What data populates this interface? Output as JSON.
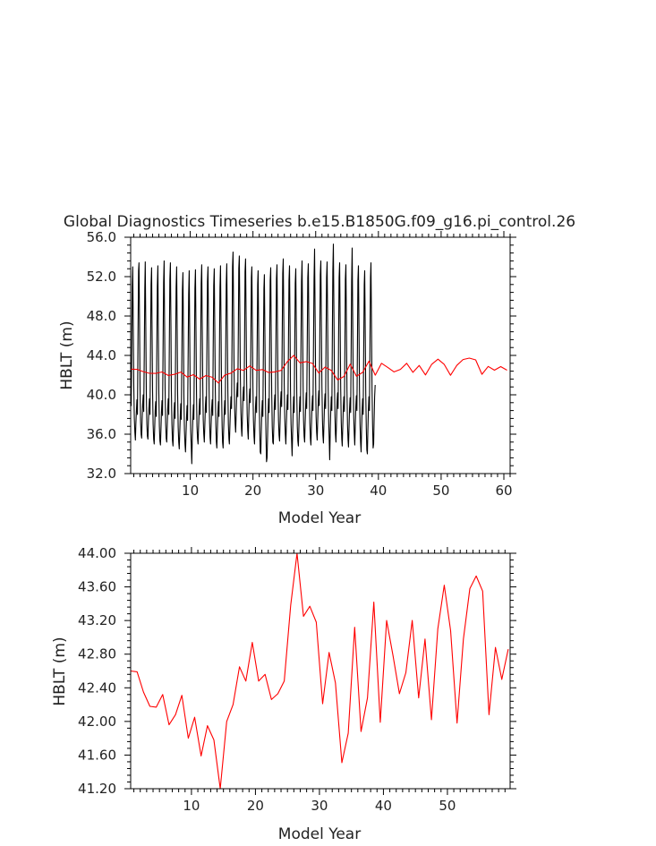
{
  "title": "Global Diagnostics Timeseries b.e15.B1850G.f09_g16.pi_control.26",
  "colors": {
    "monthly": "#000000",
    "annual": "#ff0000",
    "axes": "#000000"
  },
  "chart_data": [
    {
      "type": "line",
      "title": "Global Diagnostics Timeseries b.e15.B1850G.f09_g16.pi_control.26",
      "xlabel": "Model Year",
      "ylabel": "HBLT (m)",
      "xlim": [
        0.5,
        61
      ],
      "ylim": [
        32.0,
        56.0
      ],
      "xticks": [
        10,
        20,
        30,
        40,
        50,
        60
      ],
      "yticks": [
        "32.0",
        "36.0",
        "40.0",
        "44.0",
        "48.0",
        "52.0",
        "56.0"
      ],
      "grid": false,
      "series": [
        {
          "color": "#000000",
          "x_start": 0.5,
          "x_step": 0.0833,
          "values": [
            40.2,
            38.9,
            44.5,
            51.0,
            53.0,
            47.0,
            40.8,
            37.6,
            36.2,
            35.4,
            37.0,
            38.3,
            39.5,
            38.0,
            46.0,
            52.6,
            53.4,
            47.6,
            40.6,
            37.2,
            36.0,
            35.6,
            37.4,
            39.0,
            40.0,
            38.3,
            44.0,
            50.8,
            53.5,
            47.0,
            40.2,
            37.0,
            35.8,
            35.5,
            37.2,
            38.6,
            39.6,
            38.0,
            44.8,
            51.2,
            52.9,
            46.8,
            40.3,
            37.0,
            35.5,
            35.0,
            36.8,
            38.4,
            39.3,
            37.8,
            44.6,
            51.0,
            53.1,
            46.6,
            40.1,
            36.8,
            35.3,
            34.9,
            36.6,
            38.2,
            39.4,
            37.9,
            44.7,
            51.4,
            53.6,
            47.2,
            40.5,
            37.1,
            35.6,
            35.2,
            36.9,
            38.5,
            39.6,
            38.0,
            44.9,
            51.7,
            53.4,
            47.0,
            40.4,
            37.0,
            35.4,
            34.8,
            36.7,
            38.3,
            39.2,
            37.6,
            44.2,
            50.9,
            53.0,
            46.5,
            40.0,
            36.7,
            35.2,
            34.5,
            36.3,
            38.0,
            39.1,
            37.5,
            44.0,
            50.6,
            52.4,
            46.2,
            39.7,
            36.4,
            35.0,
            34.2,
            36.1,
            37.8,
            38.9,
            37.4,
            43.8,
            50.2,
            52.6,
            46.0,
            39.6,
            36.3,
            34.8,
            33.0,
            35.8,
            37.6,
            39.0,
            37.5,
            44.0,
            50.8,
            52.7,
            46.4,
            40.0,
            36.8,
            35.6,
            35.0,
            36.8,
            38.4,
            39.6,
            38.0,
            44.8,
            51.3,
            53.2,
            47.0,
            40.8,
            37.5,
            36.0,
            35.2,
            37.0,
            38.8,
            39.8,
            38.2,
            45.0,
            51.5,
            53.0,
            46.8,
            40.6,
            37.2,
            35.7,
            35.0,
            36.9,
            38.6,
            39.5,
            37.9,
            44.6,
            51.1,
            52.8,
            46.6,
            40.3,
            36.9,
            35.3,
            34.6,
            36.5,
            38.2,
            39.3,
            37.8,
            44.4,
            50.9,
            53.1,
            46.7,
            40.2,
            36.8,
            35.2,
            34.6,
            36.5,
            38.1,
            39.4,
            38.0,
            44.7,
            51.2,
            53.3,
            46.9,
            40.4,
            37.0,
            35.5,
            35.0,
            36.8,
            38.5,
            39.8,
            38.6,
            46.0,
            53.0,
            54.5,
            48.6,
            42.0,
            38.6,
            37.0,
            36.2,
            38.0,
            40.0,
            41.2,
            39.8,
            46.4,
            52.8,
            54.1,
            48.2,
            41.6,
            38.2,
            36.6,
            35.8,
            37.8,
            39.8,
            40.8,
            39.4,
            45.8,
            52.5,
            53.8,
            47.8,
            41.4,
            38.0,
            36.4,
            35.5,
            37.6,
            39.6,
            40.6,
            39.2,
            45.5,
            51.9,
            53.0,
            47.2,
            40.8,
            37.4,
            35.8,
            35.0,
            37.0,
            38.8,
            39.8,
            38.2,
            44.8,
            51.2,
            52.6,
            46.5,
            40.0,
            36.4,
            34.2,
            34.0,
            36.0,
            38.2,
            39.4,
            37.8,
            44.4,
            50.8,
            52.2,
            46.0,
            39.6,
            35.9,
            33.2,
            33.6,
            35.8,
            38.0,
            39.6,
            38.2,
            45.0,
            51.6,
            52.9,
            46.8,
            40.2,
            36.8,
            35.2,
            35.0,
            37.0,
            38.9,
            40.0,
            38.5,
            45.2,
            51.8,
            53.2,
            47.2,
            40.8,
            37.4,
            35.9,
            35.3,
            37.3,
            39.2,
            40.3,
            38.8,
            45.6,
            52.3,
            53.8,
            47.6,
            41.0,
            37.6,
            36.0,
            35.0,
            37.0,
            38.8,
            40.0,
            38.5,
            45.0,
            51.6,
            53.1,
            47.0,
            40.4,
            37.0,
            35.4,
            33.8,
            36.2,
            38.4,
            39.8,
            38.2,
            44.8,
            51.3,
            52.8,
            46.8,
            40.2,
            36.8,
            35.3,
            34.8,
            36.8,
            38.6,
            39.8,
            38.3,
            45.0,
            51.5,
            53.6,
            47.4,
            40.8,
            37.4,
            35.8,
            35.2,
            37.2,
            39.0,
            40.2,
            38.6,
            45.2,
            51.9,
            53.3,
            47.2,
            40.6,
            37.2,
            35.6,
            34.9,
            36.9,
            38.8,
            39.9,
            38.4,
            45.1,
            51.7,
            54.8,
            48.0,
            41.2,
            37.8,
            36.2,
            35.4,
            37.4,
            39.3,
            40.4,
            38.9,
            45.6,
            52.2,
            53.6,
            47.5,
            40.9,
            37.5,
            35.9,
            35.1,
            37.1,
            39.0,
            40.1,
            38.6,
            45.3,
            51.9,
            53.5,
            47.3,
            40.7,
            37.3,
            35.7,
            33.4,
            36.2,
            38.4,
            39.8,
            38.4,
            45.2,
            52.6,
            55.3,
            48.4,
            41.4,
            37.8,
            36.0,
            35.2,
            37.3,
            39.2,
            40.2,
            38.6,
            45.3,
            51.9,
            53.4,
            47.2,
            40.6,
            37.2,
            35.5,
            34.8,
            36.8,
            38.7,
            39.8,
            38.3,
            45.0,
            51.7,
            53.2,
            47.0,
            40.4,
            37.0,
            35.4,
            34.7,
            36.7,
            38.6,
            39.7,
            38.2,
            44.9,
            51.5,
            54.9,
            47.8,
            41.0,
            37.6,
            35.9,
            34.9,
            36.9,
            38.8,
            39.9,
            38.4,
            45.0,
            51.6,
            53.1,
            47.0,
            40.4,
            37.0,
            35.2,
            34.2,
            36.4,
            38.4,
            39.6,
            38.0,
            44.6,
            51.2,
            52.6,
            46.6,
            40.1,
            36.6,
            34.4,
            34.0,
            36.2,
            38.4,
            39.8,
            38.4,
            45.2,
            51.9,
            53.4,
            47.3,
            40.6,
            37.0,
            34.6,
            35.0,
            37.4,
            39.8,
            41.0
          ]
        },
        {
          "color": "#ff0000",
          "x": [
            0.5,
            1.5,
            2.5,
            3.5,
            4.5,
            5.5,
            6.5,
            7.5,
            8.5,
            9.5,
            10.5,
            11.5,
            12.5,
            13.5,
            14.5,
            15.5,
            16.5,
            17.5,
            18.5,
            19.5,
            20.5,
            21.5,
            22.5,
            23.5,
            24.5,
            25.5,
            26.5,
            27.5,
            28.5,
            29.5,
            30.5,
            31.5,
            32.5,
            33.5,
            34.5,
            35.5,
            36.5,
            37.5,
            38.5,
            39.5,
            40.5,
            41.5,
            42.5,
            43.5,
            44.5,
            45.5,
            46.5,
            47.5,
            48.5,
            49.5,
            50.5,
            51.5,
            52.5,
            53.5,
            54.5,
            55.5,
            56.5,
            57.5,
            58.5,
            59.5,
            60.5
          ],
          "values": [
            42.6,
            42.59,
            42.35,
            42.18,
            42.17,
            42.32,
            41.96,
            42.08,
            42.31,
            41.8,
            42.05,
            41.59,
            41.95,
            41.78,
            41.2,
            42.0,
            42.2,
            42.65,
            42.48,
            42.94,
            42.48,
            42.56,
            42.26,
            42.33,
            42.48,
            43.38,
            44.0,
            43.25,
            43.37,
            43.18,
            42.21,
            42.82,
            42.46,
            41.51,
            41.86,
            43.12,
            41.88,
            42.28,
            43.42,
            41.99,
            43.2,
            42.78,
            42.33,
            42.58,
            43.2,
            42.28,
            42.98,
            42.02,
            43.1,
            43.62,
            43.08,
            41.98,
            42.98,
            43.58,
            43.73,
            43.55,
            42.08,
            42.88,
            42.5,
            42.86,
            42.5
          ]
        }
      ]
    },
    {
      "type": "line",
      "xlabel": "Model Year",
      "ylabel": "HBLT (m)",
      "xlim": [
        0.5,
        59.8
      ],
      "ylim": [
        41.2,
        44.0
      ],
      "xticks": [
        10,
        20,
        30,
        40,
        50
      ],
      "yticks": [
        "41.20",
        "41.60",
        "42.00",
        "42.40",
        "42.80",
        "43.20",
        "43.60",
        "44.00"
      ],
      "grid": false,
      "series": [
        {
          "color": "#ff0000",
          "x": [
            0.5,
            1.5,
            2.5,
            3.5,
            4.5,
            5.5,
            6.5,
            7.5,
            8.5,
            9.5,
            10.5,
            11.5,
            12.5,
            13.5,
            14.5,
            15.5,
            16.5,
            17.5,
            18.5,
            19.5,
            20.5,
            21.5,
            22.5,
            23.5,
            24.5,
            25.5,
            26.5,
            27.5,
            28.5,
            29.5,
            30.5,
            31.5,
            32.5,
            33.5,
            34.5,
            35.5,
            36.5,
            37.5,
            38.5,
            39.5,
            40.5,
            41.5,
            42.5,
            43.5,
            44.5,
            45.5,
            46.5,
            47.5,
            48.5,
            49.5,
            50.5,
            51.5,
            52.5,
            53.5,
            54.5,
            55.5,
            56.5,
            57.5,
            58.5,
            59.5
          ],
          "values": [
            42.6,
            42.59,
            42.35,
            42.18,
            42.17,
            42.32,
            41.96,
            42.08,
            42.31,
            41.8,
            42.05,
            41.59,
            41.95,
            41.78,
            41.2,
            42.0,
            42.2,
            42.65,
            42.48,
            42.94,
            42.48,
            42.56,
            42.26,
            42.33,
            42.48,
            43.38,
            44.0,
            43.25,
            43.37,
            43.18,
            42.21,
            42.82,
            42.46,
            41.51,
            41.86,
            43.12,
            41.88,
            42.28,
            43.42,
            41.99,
            43.2,
            42.78,
            42.33,
            42.58,
            43.2,
            42.28,
            42.98,
            42.02,
            43.1,
            43.62,
            43.08,
            41.98,
            42.98,
            43.58,
            43.73,
            43.55,
            42.08,
            42.88,
            42.5,
            42.86
          ]
        }
      ]
    }
  ]
}
